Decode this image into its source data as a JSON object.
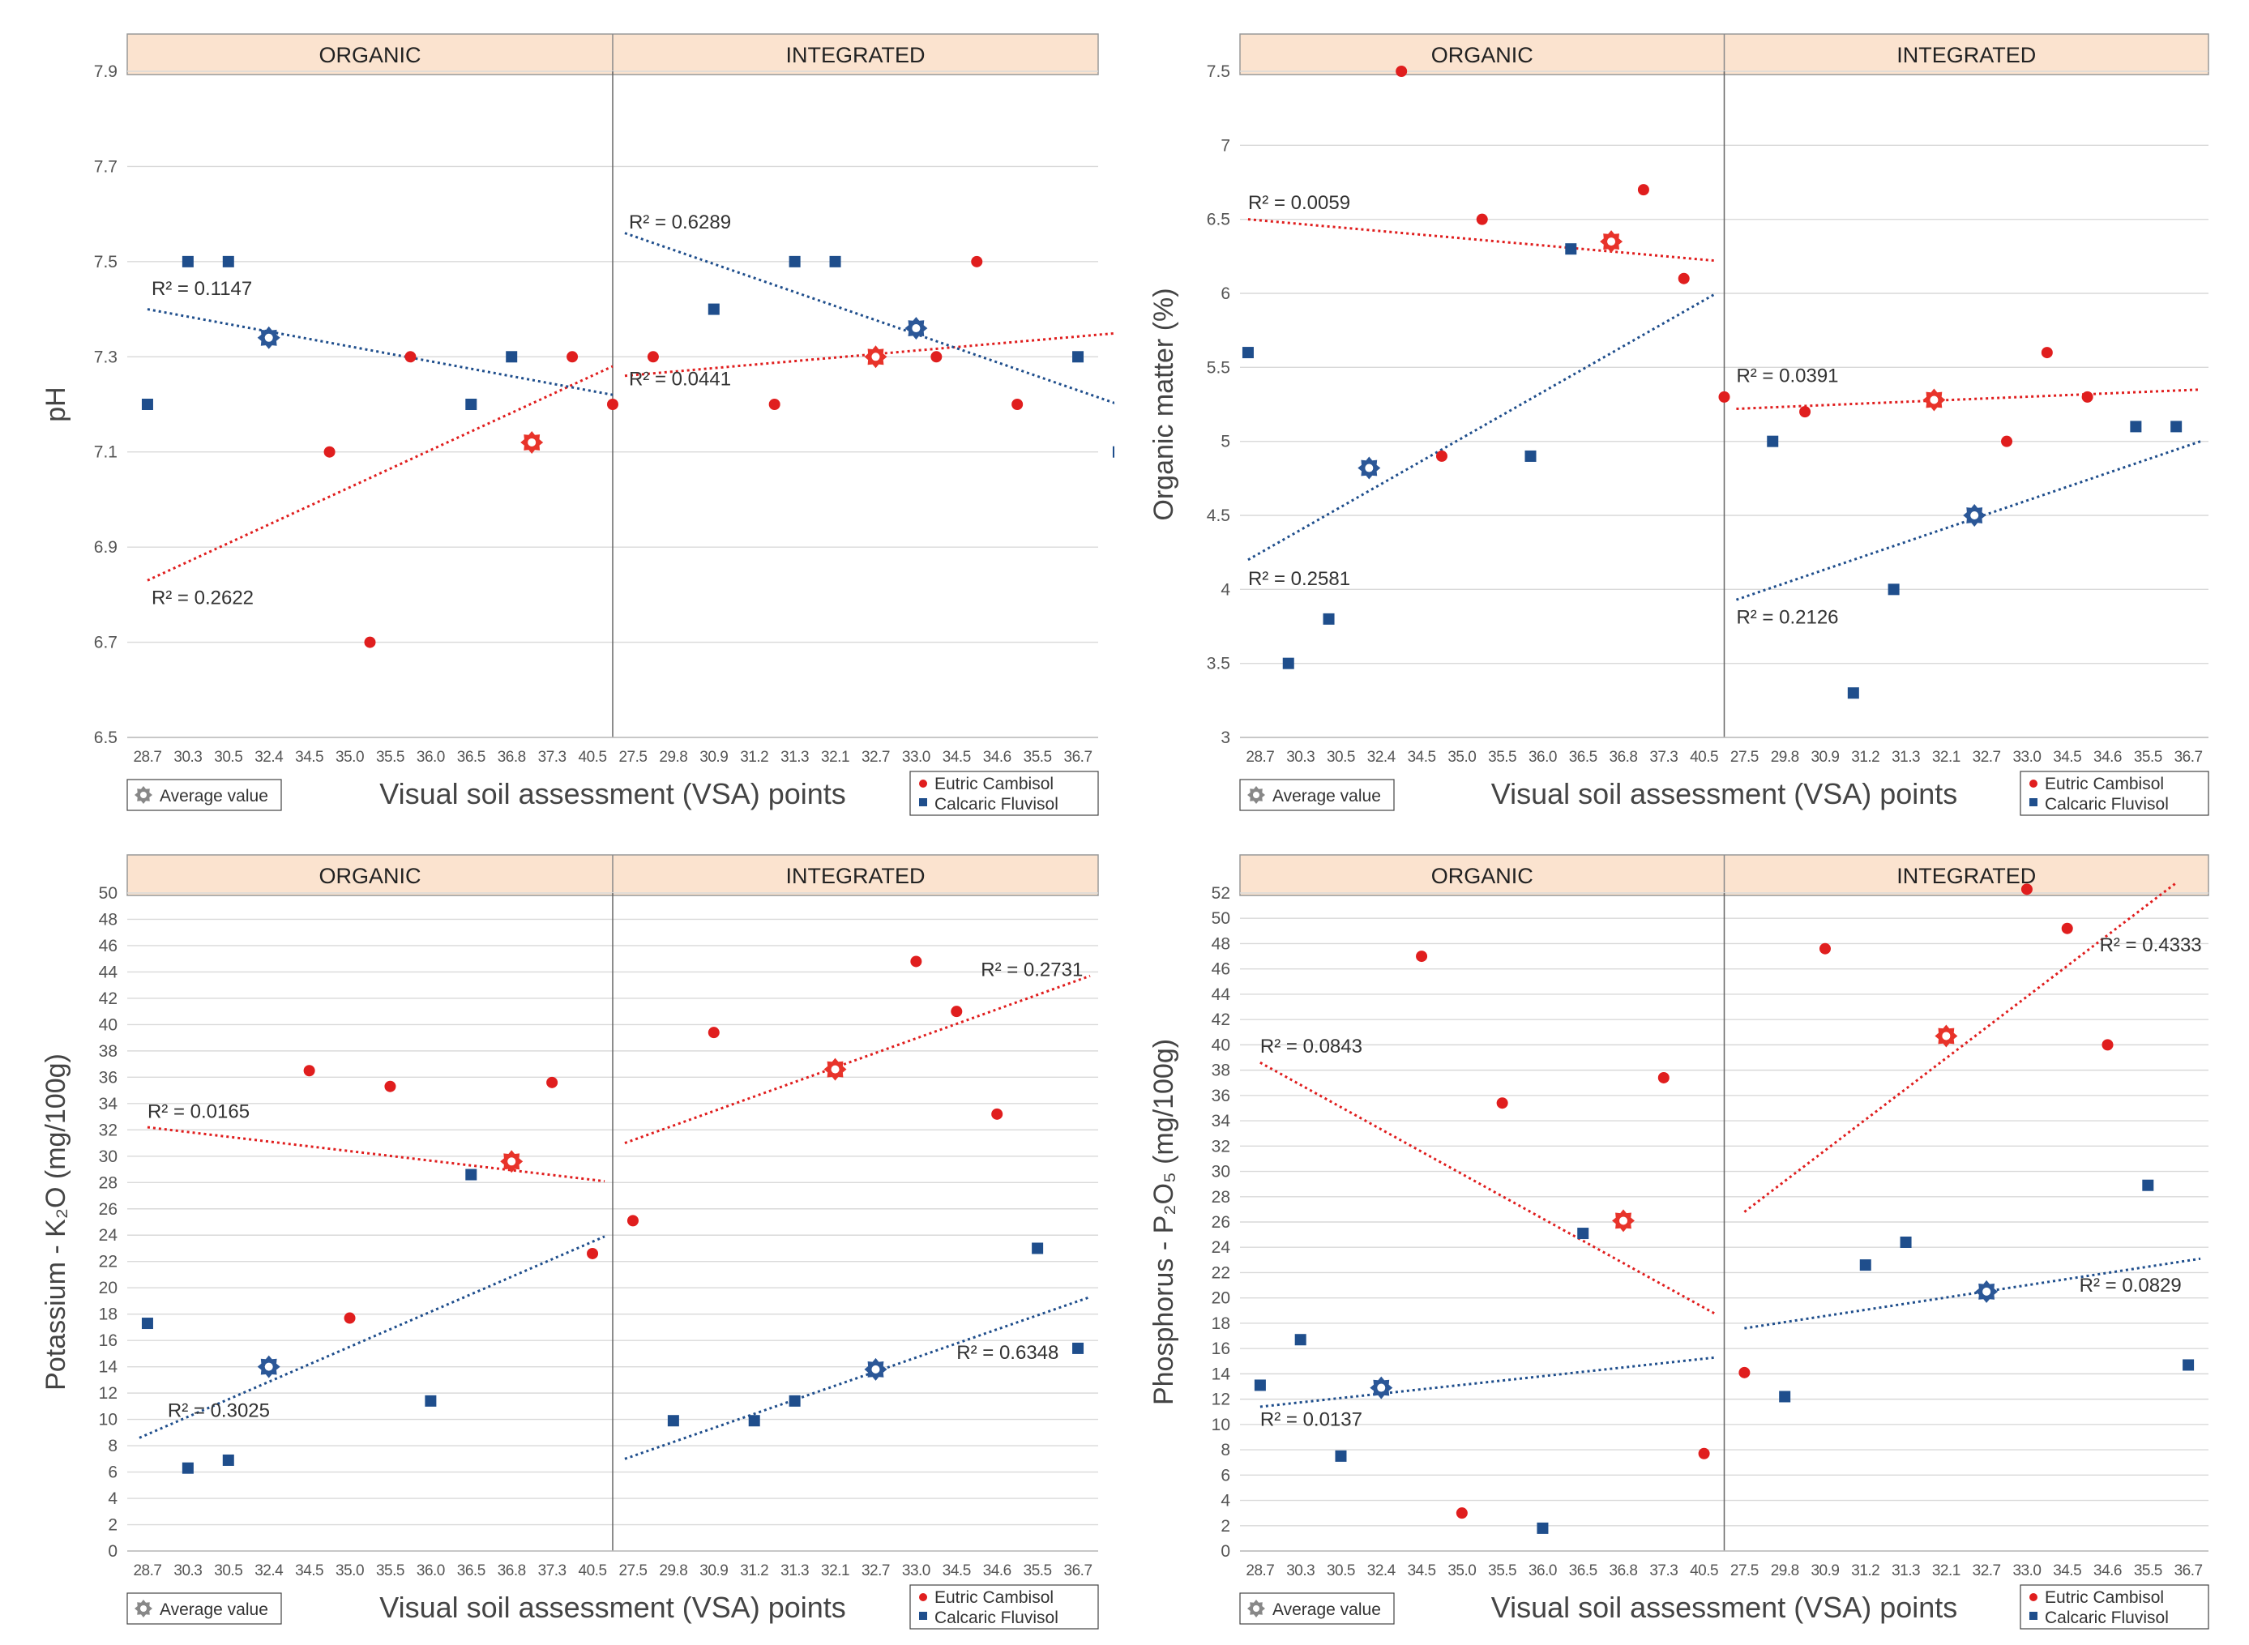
{
  "chart_data": [
    {
      "type": "scatter",
      "id": "ph",
      "ylabel": "pH",
      "ylim": [
        6.5,
        7.9
      ],
      "yticks": [
        "6.5",
        "6.7",
        "6.9",
        "7.1",
        "7.3",
        "7.5",
        "7.7",
        "7.9"
      ],
      "yticks_v": [
        6.5,
        6.7,
        6.9,
        7.1,
        7.3,
        7.5,
        7.7,
        7.9
      ],
      "ticklabels": [
        "28.7",
        "30.3",
        "30.5",
        "32.4",
        "34.5",
        "35.0",
        "35.5",
        "36.0",
        "36.5",
        "36.8",
        "37.3",
        "40.5",
        "27.5",
        "29.8",
        "30.9",
        "31.2",
        "31.3",
        "32.1",
        "32.7",
        "33.0",
        "34.5",
        "34.6",
        "35.5",
        "36.7"
      ],
      "sections": [
        "ORGANIC",
        "INTEGRATED"
      ],
      "xlabel": "Visual soil assessment (VSA) points",
      "legend": {
        "avg": "Average value",
        "eutric": "Eutric Cambisol",
        "calcaric": "Calcaric Fluvisol"
      },
      "series": [
        {
          "name": "Eutric Cambisol",
          "points": [
            [
              5,
              7.1
            ],
            [
              6,
              6.7
            ],
            [
              7,
              7.3
            ],
            [
              11,
              7.3
            ],
            [
              12,
              7.2
            ],
            [
              13,
              7.3
            ],
            [
              16,
              7.2
            ],
            [
              20,
              7.3
            ],
            [
              21,
              7.5
            ],
            [
              22,
              7.2
            ]
          ]
        },
        {
          "name": "Calcaric Fluvisol",
          "points": [
            [
              0.5,
              7.2
            ],
            [
              1.5,
              7.5
            ],
            [
              2.5,
              7.5
            ],
            [
              8.5,
              7.2
            ],
            [
              9.5,
              7.3
            ],
            [
              14.5,
              7.4
            ],
            [
              16.5,
              7.5
            ],
            [
              17.5,
              7.5
            ],
            [
              23.5,
              7.3
            ],
            [
              24.5,
              7.1
            ]
          ]
        }
      ],
      "averages": [
        {
          "series": "Eutric Cambisol",
          "x": 10,
          "y": 7.12
        },
        {
          "series": "Calcaric Fluvisol",
          "x": 3.5,
          "y": 7.34
        },
        {
          "series": "Eutric Cambisol",
          "x": 18.5,
          "y": 7.3
        },
        {
          "series": "Calcaric Fluvisol",
          "x": 19.5,
          "y": 7.36
        }
      ],
      "trends": [
        {
          "series": "Eutric Cambisol",
          "x1": 0.5,
          "y1": 6.83,
          "x2": 12,
          "y2": 7.28
        },
        {
          "series": "Calcaric Fluvisol",
          "x1": 0.5,
          "y1": 7.4,
          "x2": 12,
          "y2": 7.22
        },
        {
          "series": "Eutric Cambisol",
          "x1": 12.3,
          "y1": 7.26,
          "x2": 24.5,
          "y2": 7.35
        },
        {
          "series": "Calcaric Fluvisol",
          "x1": 12.3,
          "y1": 7.56,
          "x2": 24.5,
          "y2": 7.2
        }
      ],
      "annotations": [
        {
          "text": "R² = 0.1147",
          "x": 0.6,
          "y": 7.43
        },
        {
          "text": "R² = 0.2622",
          "x": 0.6,
          "y": 6.78
        },
        {
          "text": "R² = 0.6289",
          "x": 12.4,
          "y": 7.57
        },
        {
          "text": "R² = 0.0441",
          "x": 12.4,
          "y": 7.24
        }
      ]
    },
    {
      "type": "scatter",
      "id": "om",
      "ylabel": "Organic matter (%)",
      "ylim": [
        3,
        7.5
      ],
      "yticks": [
        "3",
        "3.5",
        "4",
        "4.5",
        "5",
        "5.5",
        "6",
        "6.5",
        "7",
        "7.5"
      ],
      "yticks_v": [
        3,
        3.5,
        4,
        4.5,
        5,
        5.5,
        6,
        6.5,
        7,
        7.5
      ],
      "ticklabels": [
        "28.7",
        "30.3",
        "30.5",
        "32.4",
        "34.5",
        "35.0",
        "35.5",
        "36.0",
        "36.5",
        "36.8",
        "37.3",
        "40.5",
        "27.5",
        "29.8",
        "30.9",
        "31.2",
        "31.3",
        "32.1",
        "32.7",
        "33.0",
        "34.5",
        "34.6",
        "35.5",
        "36.7"
      ],
      "sections": [
        "ORGANIC",
        "INTEGRATED"
      ],
      "xlabel": "Visual soil assessment (VSA) points",
      "legend": {
        "avg": "Average value",
        "eutric": "Eutric Cambisol",
        "calcaric": "Calcaric Fluvisol"
      },
      "series": [
        {
          "name": "Eutric Cambisol",
          "points": [
            [
              4,
              7.5
            ],
            [
              5,
              4.9
            ],
            [
              6,
              6.5
            ],
            [
              10,
              6.7
            ],
            [
              11,
              6.1
            ],
            [
              12,
              5.3
            ],
            [
              14,
              5.2
            ],
            [
              19,
              5.0
            ],
            [
              20,
              5.6
            ],
            [
              21,
              5.3
            ]
          ]
        },
        {
          "name": "Calcaric Fluvisol",
          "points": [
            [
              0.2,
              5.6
            ],
            [
              1.2,
              3.5
            ],
            [
              2.2,
              3.8
            ],
            [
              7.2,
              4.9
            ],
            [
              8.2,
              6.3
            ],
            [
              13.2,
              5.0
            ],
            [
              15.2,
              3.3
            ],
            [
              16.2,
              4.0
            ],
            [
              22.2,
              5.1
            ],
            [
              23.2,
              5.1
            ]
          ]
        }
      ],
      "averages": [
        {
          "series": "Eutric Cambisol",
          "x": 9.2,
          "y": 6.35
        },
        {
          "series": "Calcaric Fluvisol",
          "x": 3.2,
          "y": 4.82
        },
        {
          "series": "Eutric Cambisol",
          "x": 17.2,
          "y": 5.28
        },
        {
          "series": "Calcaric Fluvisol",
          "x": 18.2,
          "y": 4.5
        }
      ],
      "trends": [
        {
          "series": "Eutric Cambisol",
          "x1": 0.2,
          "y1": 6.5,
          "x2": 11.8,
          "y2": 6.22
        },
        {
          "series": "Calcaric Fluvisol",
          "x1": 0.2,
          "y1": 4.2,
          "x2": 11.8,
          "y2": 6.0
        },
        {
          "series": "Eutric Cambisol",
          "x1": 12.3,
          "y1": 5.22,
          "x2": 23.8,
          "y2": 5.35
        },
        {
          "series": "Calcaric Fluvisol",
          "x1": 12.3,
          "y1": 3.93,
          "x2": 23.8,
          "y2": 5.0
        }
      ],
      "annotations": [
        {
          "text": "R² = 0.0059",
          "x": 0.2,
          "y": 6.57
        },
        {
          "text": "R² = 0.2581",
          "x": 0.2,
          "y": 4.03
        },
        {
          "text": "R² = 0.0391",
          "x": 12.3,
          "y": 5.4
        },
        {
          "text": "R² = 0.2126",
          "x": 12.3,
          "y": 3.77
        }
      ]
    },
    {
      "type": "scatter",
      "id": "k2o",
      "ylabel": "Potassium - K₂O (mg/100g)",
      "ylim": [
        0,
        50
      ],
      "yticks": [
        "0",
        "2",
        "4",
        "6",
        "8",
        "10",
        "12",
        "14",
        "16",
        "18",
        "20",
        "22",
        "24",
        "26",
        "28",
        "30",
        "32",
        "34",
        "36",
        "38",
        "40",
        "42",
        "44",
        "46",
        "48",
        "50"
      ],
      "yticks_v": [
        0,
        2,
        4,
        6,
        8,
        10,
        12,
        14,
        16,
        18,
        20,
        22,
        24,
        26,
        28,
        30,
        32,
        34,
        36,
        38,
        40,
        42,
        44,
        46,
        48,
        50
      ],
      "ticklabels": [
        "28.7",
        "30.3",
        "30.5",
        "32.4",
        "34.5",
        "35.0",
        "35.5",
        "36.0",
        "36.5",
        "36.8",
        "37.3",
        "40.5",
        "27.5",
        "29.8",
        "30.9",
        "31.2",
        "31.3",
        "32.1",
        "32.7",
        "33.0",
        "34.5",
        "34.6",
        "35.5",
        "36.7"
      ],
      "sections": [
        "ORGANIC",
        "INTEGRATED"
      ],
      "xlabel": "Visual soil assessment (VSA) points",
      "legend": {
        "avg": "Average value",
        "eutric": "Eutric Cambisol",
        "calcaric": "Calcaric Fluvisol"
      },
      "series": [
        {
          "name": "Eutric Cambisol",
          "points": [
            [
              4.5,
              36.5
            ],
            [
              5.5,
              17.7
            ],
            [
              6.5,
              35.3
            ],
            [
              10.5,
              35.6
            ],
            [
              11.5,
              22.6
            ],
            [
              12.5,
              25.1
            ],
            [
              14.5,
              39.4
            ],
            [
              19.5,
              44.8
            ],
            [
              20.5,
              41.0
            ],
            [
              21.5,
              33.2
            ]
          ]
        },
        {
          "name": "Calcaric Fluvisol",
          "points": [
            [
              0.5,
              17.3
            ],
            [
              1.5,
              6.3
            ],
            [
              2.5,
              6.9
            ],
            [
              7.5,
              11.4
            ],
            [
              8.5,
              28.6
            ],
            [
              13.5,
              9.9
            ],
            [
              15.5,
              9.9
            ],
            [
              16.5,
              11.4
            ],
            [
              22.5,
              23.0
            ],
            [
              23.5,
              15.4
            ]
          ]
        }
      ],
      "averages": [
        {
          "series": "Eutric Cambisol",
          "x": 9.5,
          "y": 29.6
        },
        {
          "series": "Calcaric Fluvisol",
          "x": 3.5,
          "y": 14.0
        },
        {
          "series": "Eutric Cambisol",
          "x": 17.5,
          "y": 36.6
        },
        {
          "series": "Calcaric Fluvisol",
          "x": 18.5,
          "y": 13.8
        }
      ],
      "trends": [
        {
          "series": "Eutric Cambisol",
          "x1": 0.5,
          "y1": 32.2,
          "x2": 11.8,
          "y2": 28.1
        },
        {
          "series": "Calcaric Fluvisol",
          "x1": 0.3,
          "y1": 8.6,
          "x2": 11.8,
          "y2": 23.9
        },
        {
          "series": "Eutric Cambisol",
          "x1": 12.3,
          "y1": 31.0,
          "x2": 23.8,
          "y2": 43.7
        },
        {
          "series": "Calcaric Fluvisol",
          "x1": 12.3,
          "y1": 7.0,
          "x2": 23.8,
          "y2": 19.3
        }
      ],
      "annotations": [
        {
          "text": "R² = 0.0165",
          "x": 0.5,
          "y": 32.9
        },
        {
          "text": "R² = 0.3025",
          "x": 1.0,
          "y": 10.2
        },
        {
          "text": "R² = 0.2731",
          "x": 21.1,
          "y": 43.7
        },
        {
          "text": "R² = 0.6348",
          "x": 20.5,
          "y": 14.6
        }
      ]
    },
    {
      "type": "scatter",
      "id": "p2o5",
      "ylabel": "Phosphorus - P₂O₅ (mg/100g)",
      "ylim": [
        0,
        52
      ],
      "yticks": [
        "0",
        "2",
        "4",
        "6",
        "8",
        "10",
        "12",
        "14",
        "16",
        "18",
        "20",
        "22",
        "24",
        "26",
        "28",
        "30",
        "32",
        "34",
        "36",
        "38",
        "40",
        "42",
        "44",
        "46",
        "48",
        "50",
        "52"
      ],
      "yticks_v": [
        0,
        2,
        4,
        6,
        8,
        10,
        12,
        14,
        16,
        18,
        20,
        22,
        24,
        26,
        28,
        30,
        32,
        34,
        36,
        38,
        40,
        42,
        44,
        46,
        48,
        50,
        52
      ],
      "ticklabels": [
        "28.7",
        "30.3",
        "30.5",
        "32.4",
        "34.5",
        "35.0",
        "35.5",
        "36.0",
        "36.5",
        "36.8",
        "37.3",
        "40.5",
        "27.5",
        "29.8",
        "30.9",
        "31.2",
        "31.3",
        "32.1",
        "32.7",
        "33.0",
        "34.5",
        "34.6",
        "35.5",
        "36.7"
      ],
      "sections": [
        "ORGANIC",
        "INTEGRATED"
      ],
      "xlabel": "Visual soil assessment (VSA) points",
      "legend": {
        "avg": "Average value",
        "eutric": "Eutric Cambisol",
        "calcaric": "Calcaric Fluvisol"
      },
      "series": [
        {
          "name": "Eutric Cambisol",
          "points": [
            [
              4.5,
              47.0
            ],
            [
              5.5,
              3.0
            ],
            [
              6.5,
              35.4
            ],
            [
              10.5,
              37.4
            ],
            [
              11.5,
              7.7
            ],
            [
              12.5,
              14.1
            ],
            [
              14.5,
              47.6
            ],
            [
              19.5,
              52.3
            ],
            [
              20.5,
              49.2
            ],
            [
              21.5,
              40.0
            ]
          ]
        },
        {
          "name": "Calcaric Fluvisol",
          "points": [
            [
              0.5,
              13.1
            ],
            [
              1.5,
              16.7
            ],
            [
              2.5,
              7.5
            ],
            [
              7.5,
              1.8
            ],
            [
              8.5,
              25.1
            ],
            [
              13.5,
              12.2
            ],
            [
              15.5,
              22.6
            ],
            [
              16.5,
              24.4
            ],
            [
              22.5,
              28.9
            ],
            [
              23.5,
              14.7
            ]
          ]
        }
      ],
      "averages": [
        {
          "series": "Eutric Cambisol",
          "x": 9.5,
          "y": 26.1
        },
        {
          "series": "Calcaric Fluvisol",
          "x": 3.5,
          "y": 12.9
        },
        {
          "series": "Eutric Cambisol",
          "x": 17.5,
          "y": 40.7
        },
        {
          "series": "Calcaric Fluvisol",
          "x": 18.5,
          "y": 20.5
        }
      ],
      "trends": [
        {
          "series": "Eutric Cambisol",
          "x1": 0.5,
          "y1": 38.6,
          "x2": 11.8,
          "y2": 18.7
        },
        {
          "series": "Calcaric Fluvisol",
          "x1": 0.5,
          "y1": 11.4,
          "x2": 11.8,
          "y2": 15.3
        },
        {
          "series": "Eutric Cambisol",
          "x1": 12.5,
          "y1": 26.8,
          "x2": 23.2,
          "y2": 52.8
        },
        {
          "series": "Calcaric Fluvisol",
          "x1": 12.5,
          "y1": 17.6,
          "x2": 23.8,
          "y2": 23.1
        }
      ],
      "annotations": [
        {
          "text": "R² = 0.0843",
          "x": 0.5,
          "y": 39.4
        },
        {
          "text": "R² = 0.0137",
          "x": 0.5,
          "y": 9.9
        },
        {
          "text": "R² = 0.4333",
          "x": 21.3,
          "y": 47.4
        },
        {
          "text": "R² = 0.0829",
          "x": 20.8,
          "y": 20.5
        }
      ]
    }
  ],
  "colors": {
    "eutric": "#e01e1e",
    "calcaric": "#1f4e8c",
    "eutric_avg": "#e8332a",
    "calcaric_avg": "#2b5797",
    "header_fill": "#fbe3cf",
    "grid": "#d9d9d9",
    "avg_icon": "#888888"
  }
}
